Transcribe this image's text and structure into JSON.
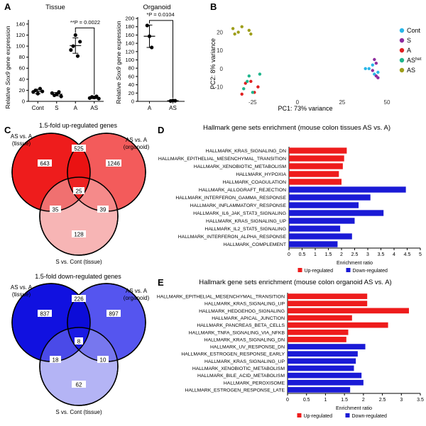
{
  "panels": {
    "A": {
      "letter": "A",
      "tissue": {
        "title": "Tissue",
        "ylabel_pre": "Relative ",
        "ylabel_gene": "Sox9",
        "ylabel_post": " gene expression",
        "pvalue": "**P = 0.0022",
        "categories": [
          "Cont",
          "S",
          "A",
          "AS"
        ],
        "yticks": [
          0,
          20,
          40,
          60,
          80,
          100,
          120,
          140
        ],
        "ylim": [
          0,
          145
        ],
        "points": [
          [
            17,
            20,
            14,
            23,
            18
          ],
          [
            15,
            11,
            13,
            17,
            9
          ],
          [
            93,
            100,
            120,
            82,
            108
          ],
          [
            6,
            8,
            7,
            9,
            5
          ]
        ],
        "means": [
          18,
          13,
          101,
          7
        ],
        "sd": [
          4,
          3,
          14,
          2
        ]
      },
      "organoid": {
        "title": "Organoid",
        "ylabel_pre": "Relative ",
        "ylabel_gene": "Sox9",
        "ylabel_post": " gene expression",
        "pvalue": "*P = 0.0104",
        "categories": [
          "A",
          "AS"
        ],
        "yticks": [
          0,
          20,
          40,
          60,
          80,
          100,
          120,
          140,
          160,
          180,
          200
        ],
        "ylim": [
          0,
          200
        ],
        "points": [
          [
            183,
            157,
            130
          ],
          [
            1,
            2,
            1.5
          ]
        ],
        "means": [
          157,
          1.5
        ],
        "sd": [
          27,
          0.5
        ]
      }
    },
    "B": {
      "letter": "B",
      "xlabel": "PC1: 73% variance",
      "ylabel": "PC2: 8% variance",
      "xticks": [
        -25,
        0,
        25,
        50
      ],
      "yticks": [
        -10,
        0,
        10,
        20
      ],
      "xlim": [
        -40,
        52
      ],
      "ylim": [
        -16,
        26
      ],
      "legend": [
        {
          "key": "Cont",
          "label": "Cont",
          "sup": "",
          "color": "#29b6e8"
        },
        {
          "key": "S",
          "label": "S",
          "sup": "",
          "color": "#8e2d9e"
        },
        {
          "key": "A",
          "label": "A",
          "sup": "",
          "color": "#e02020"
        },
        {
          "key": "AShet",
          "label": "AS",
          "sup": "het",
          "color": "#1fb58c"
        },
        {
          "key": "AS",
          "label": "AS",
          "sup": "",
          "color": "#9e9e1a"
        }
      ]
    },
    "C": {
      "letter": "C",
      "up": {
        "title": "1.5-fold up-regulated genes",
        "label_left_1": "AS vs. A",
        "label_left_2": "(tissue)",
        "label_right_1": "AS vs. A",
        "label_right_2": "(organoid)",
        "label_bottom": "S vs. Cont (tissue)",
        "n_left": "643",
        "n_right": "1246",
        "n_top": "525",
        "n_center": "25",
        "n_lb": "35",
        "n_rb": "39",
        "n_bottom": "128"
      },
      "down": {
        "title": "1.5-fold down-regulated genes",
        "label_left_1": "AS vs. A",
        "label_left_2": "(tissue)",
        "label_right_1": "AS vs. A",
        "label_right_2": "(organoid)",
        "label_bottom": "S vs. Cont (tissue)",
        "n_left": "837",
        "n_right": "897",
        "n_top": "226",
        "n_center": "8",
        "n_lb": "18",
        "n_rb": "10",
        "n_bottom": "62"
      }
    },
    "D": {
      "letter": "D",
      "title": "Hallmark gene sets enrichment (mouse colon tissues AS vs. A)",
      "xlabel": "Enrichment ratio",
      "legend_up": "Up-regulated",
      "legend_down": "Down-regulated",
      "xticks": [
        0,
        0.5,
        1,
        1.5,
        2,
        2.5,
        3,
        3.5,
        4,
        4.5,
        5
      ]
    },
    "E": {
      "letter": "E",
      "title": "Hallmark gene sets enrichment (mouse colon organoid AS vs. A)",
      "xlabel": "Enrichment ratio",
      "legend_up": "Up-regulated",
      "legend_down": "Down-regulated",
      "xticks": [
        0,
        0.5,
        1,
        1.5,
        2,
        2.5,
        3,
        3.5
      ]
    }
  },
  "colors": {
    "up": "#ee1c1c",
    "down": "#1a1ad6",
    "axis": "#000000"
  },
  "chart_data": [
    {
      "type": "scatter",
      "panel": "A-tissue",
      "title": "Tissue",
      "categories": [
        "Cont",
        "S",
        "A",
        "AS"
      ],
      "ylabel": "Relative Sox9 gene expression",
      "ylim": [
        0,
        145
      ],
      "values": [
        [
          17,
          20,
          14,
          23,
          18
        ],
        [
          15,
          11,
          13,
          17,
          9
        ],
        [
          93,
          100,
          120,
          82,
          108
        ],
        [
          6,
          8,
          7,
          9,
          5
        ]
      ]
    },
    {
      "type": "scatter",
      "panel": "A-organoid",
      "title": "Organoid",
      "categories": [
        "A",
        "AS"
      ],
      "ylabel": "Relative Sox9 gene expression",
      "ylim": [
        0,
        200
      ],
      "values": [
        [
          183,
          157,
          130
        ],
        [
          1,
          2,
          1.5
        ]
      ]
    },
    {
      "type": "scatter",
      "panel": "B",
      "xlabel": "PC1: 73% variance",
      "ylabel": "PC2: 8% variance",
      "xlim": [
        -40,
        52
      ],
      "ylim": [
        -16,
        26
      ],
      "series": [
        {
          "name": "Cont",
          "points": [
            [
              40,
              0
            ],
            [
              42,
              2
            ],
            [
              45,
              -2
            ],
            [
              43,
              -3
            ],
            [
              38,
              0
            ]
          ]
        },
        {
          "name": "S",
          "points": [
            [
              43,
              5
            ],
            [
              44,
              3
            ],
            [
              42,
              -1
            ],
            [
              45,
              -5
            ],
            [
              44,
              -4
            ]
          ]
        },
        {
          "name": "A",
          "points": [
            [
              -31,
              -14
            ],
            [
              -29,
              -8
            ],
            [
              -26,
              -7
            ],
            [
              -22,
              -10
            ],
            [
              -24,
              -13
            ]
          ]
        },
        {
          "name": "AShet",
          "points": [
            [
              -30,
              -11
            ],
            [
              -27,
              -4
            ],
            [
              -21,
              -3
            ],
            [
              -25,
              -13
            ],
            [
              -28,
              -7
            ]
          ]
        },
        {
          "name": "AS",
          "points": [
            [
              -36,
              22
            ],
            [
              -33,
              20
            ],
            [
              -31,
              23
            ],
            [
              -26,
              19
            ],
            [
              -35,
              19
            ],
            [
              -27,
              21
            ]
          ]
        }
      ]
    },
    {
      "type": "bar",
      "panel": "D",
      "title": "Hallmark gene sets enrichment (mouse colon tissues AS vs. A)",
      "xlabel": "Enrichment ratio",
      "xlim": [
        0,
        5
      ],
      "categories": [
        "HALLMARK_KRAS_SIGNALING_DN",
        "HALLMARK_EPITHELIAL_MESENCHYMAL_TRANSITION",
        "HALLMARK_XENOBIOTIC_METABOLISM",
        "HALLMARK_HYPOXIA",
        "HALLMARK_COAGULATION",
        "HALLMARK_ALLOGRAFT_REJECTION",
        "HALLMARK_INTERFERON_GAMMA_RESPONSE",
        "HALLMARK_INFLAMMATORY_RESPONSE",
        "HALLMARK_IL6_JAK_STAT3_SIGNALING",
        "HALLMARK_KRAS_SIGNALING_UP",
        "HALLMARK_IL2_STAT5_SIGNALING",
        "HALLMARK_INTERFERON_ALPHA_RESPONSE",
        "HALLMARK_COMPLEMENT"
      ],
      "values": [
        2.2,
        2.1,
        2.05,
        1.9,
        2.0,
        4.45,
        3.1,
        2.65,
        3.6,
        2.5,
        1.95,
        2.4,
        1.85
      ],
      "direction": [
        "up",
        "up",
        "up",
        "up",
        "up",
        "down",
        "down",
        "down",
        "down",
        "down",
        "down",
        "down",
        "down"
      ]
    },
    {
      "type": "bar",
      "panel": "E",
      "title": "Hallmark gene sets enrichment (mouse colon organoid AS vs. A)",
      "xlabel": "Enrichment ratio",
      "xlim": [
        0,
        3.5
      ],
      "categories": [
        "HALLMARK_EPITHELIAL_MESENCHYMAL_TRANSITION",
        "HALLMARK_KRAS_SIGNALING_UP",
        "HALLMARK_HEDGEHOG_SIGNALING",
        "HALLMARK_APICAL_JUNCTION",
        "HALLMARK_PANCREAS_BETA_CELLS",
        "HALLMARK_TNFA_SIGNALING_VIA_NFKB",
        "HALLMARK_KRAS_SIGNALING_DN",
        "HALLMARK_UV_RESPONSE_DN",
        "HALLMARK_ESTROGEN_RESPONSE_EARLY",
        "HALLMARK_KRAS_SIGNALING_UP",
        "HALLMARK_XENOBIOTIC_METABOLISM",
        "HALLMARK_BILE_ACID_METABOLISM",
        "HALLMARK_PEROXISOME",
        "HALLMARK_ESTROGEN_RESPONSE_LATE"
      ],
      "values": [
        2.1,
        2.1,
        3.2,
        1.7,
        2.65,
        1.6,
        1.55,
        2.05,
        1.85,
        1.8,
        1.75,
        1.95,
        2.0,
        1.65
      ],
      "direction": [
        "up",
        "up",
        "up",
        "up",
        "up",
        "up",
        "up",
        "down",
        "down",
        "down",
        "down",
        "down",
        "down",
        "down"
      ]
    }
  ]
}
